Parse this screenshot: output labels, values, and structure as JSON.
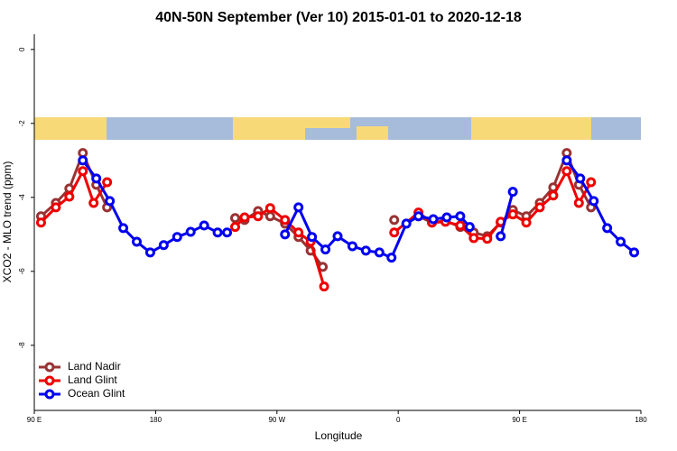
{
  "chart_data": {
    "type": "line",
    "title": "40N-50N September (Ver 10)   2015-01-01 to 2020-12-18",
    "x_label": "Longitude",
    "y_label": "XCO2 - MLO trend (ppm)",
    "xlim": [
      90,
      540
    ],
    "xticks": [
      {
        "value": 90,
        "label": "90 E"
      },
      {
        "value": 180,
        "label": "180"
      },
      {
        "value": 270,
        "label": "90 W"
      },
      {
        "value": 360,
        "label": "0"
      },
      {
        "value": 450,
        "label": "90 E"
      },
      {
        "value": 540,
        "label": "180"
      }
    ],
    "ylim": [
      -9.76,
      0.41
    ],
    "yticks": [
      0,
      -2,
      -4,
      -6,
      -8
    ],
    "legend": "bottom-left",
    "series": [
      {
        "name": "Land Nadir",
        "color": "#993333",
        "x": [
          95,
          106,
          116,
          126,
          136,
          144,
          190,
          239,
          246,
          256,
          265,
          276,
          286,
          295,
          304,
          330,
          357,
          366,
          375,
          385,
          395,
          406,
          416,
          426,
          436,
          445,
          455,
          465,
          475,
          485,
          494,
          503
        ],
        "values": [
          -4.51,
          -4.15,
          -3.76,
          -2.8,
          -3.66,
          -4.27,
          null,
          -4.56,
          -4.61,
          -4.37,
          -4.51,
          -4.71,
          -5.07,
          -5.44,
          -5.88,
          null,
          -4.61,
          null,
          -4.51,
          -4.68,
          -4.63,
          -4.8,
          -4.95,
          -5.05,
          -4.68,
          -4.34,
          -4.51,
          -4.15,
          -3.73,
          -2.8,
          -3.66,
          -4.27
        ]
      },
      {
        "name": "Land Glint",
        "color": "#ee0000",
        "x": [
          95,
          106,
          116,
          126,
          134,
          144,
          190,
          239,
          246,
          256,
          265,
          276,
          286,
          295,
          305,
          330,
          357,
          375,
          385,
          395,
          406,
          416,
          426,
          436,
          445,
          455,
          465,
          475,
          485,
          494,
          503
        ],
        "values": [
          -4.68,
          -4.27,
          -3.98,
          -3.29,
          -4.15,
          -3.59,
          null,
          -4.8,
          -4.54,
          -4.51,
          -4.29,
          -4.61,
          -4.95,
          -5.2,
          -6.41,
          null,
          -4.95,
          -4.41,
          -4.68,
          -4.66,
          -4.76,
          -5.1,
          -5.12,
          -4.66,
          -4.46,
          -4.68,
          -4.27,
          -3.95,
          -3.29,
          -4.15,
          -3.59
        ]
      },
      {
        "name": "Ocean Glint",
        "color": "#0000ee",
        "x": [
          126,
          136,
          146,
          156,
          166,
          176,
          186,
          196,
          206,
          216,
          226,
          233,
          255,
          276,
          286,
          296,
          306,
          315,
          326,
          336,
          346,
          355,
          366,
          375,
          386,
          396,
          406,
          413,
          425,
          436,
          445,
          465,
          485,
          495,
          505,
          515,
          525,
          535
        ],
        "values": [
          -3.0,
          -3.49,
          -4.1,
          -4.83,
          -5.2,
          -5.49,
          -5.29,
          -5.07,
          -4.93,
          -4.76,
          -4.95,
          -4.95,
          null,
          -5.0,
          -4.27,
          -5.07,
          -5.41,
          -5.05,
          -5.32,
          -5.44,
          -5.49,
          -5.63,
          -4.71,
          -4.51,
          -4.59,
          -4.54,
          -4.51,
          -4.8,
          null,
          -5.05,
          -3.85,
          null,
          -3.0,
          -3.49,
          -4.1,
          -4.83,
          -5.2,
          -5.49
        ]
      }
    ]
  }
}
